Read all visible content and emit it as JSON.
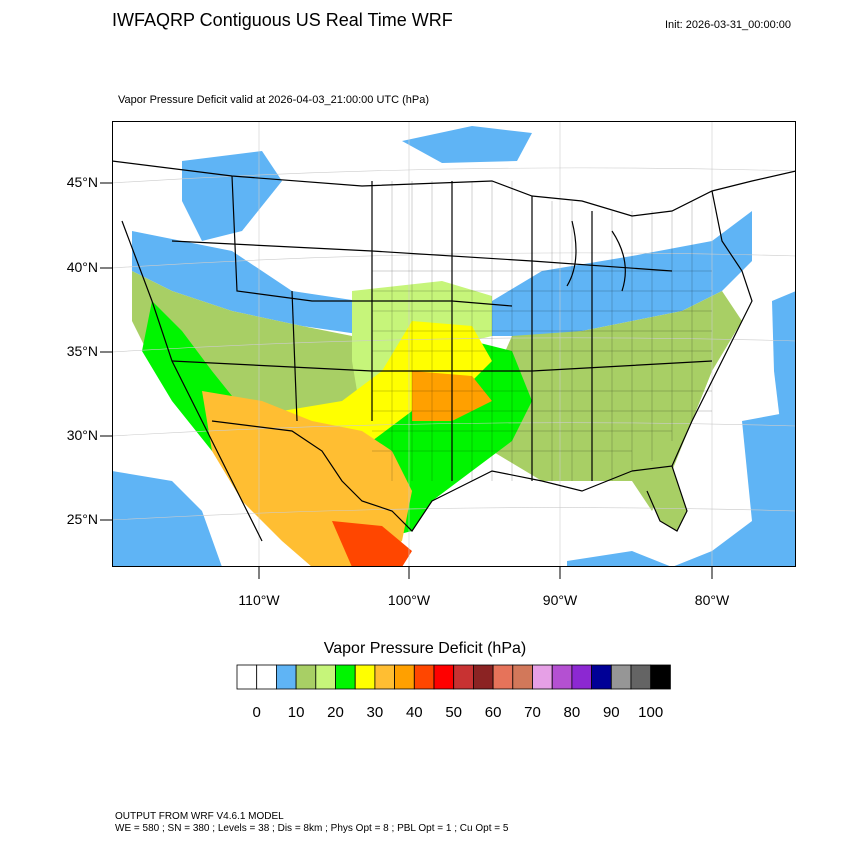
{
  "header": {
    "title": "IWFAQRP Contiguous US Real Time WRF",
    "init": "Init: 2026-03-31_00:00:00",
    "subtitle": "Vapor Pressure Deficit valid at 2026-04-03_21:00:00 UTC   (hPa)"
  },
  "map": {
    "lat_labels": [
      "45°N",
      "40°N",
      "35°N",
      "30°N",
      "25°N"
    ],
    "lon_labels": [
      "110°W",
      "100°W",
      "90°W",
      "80°W"
    ],
    "colors": {
      "ocean_moist": "#5fb4f5",
      "land_light_green": "#a8cf65",
      "land_yellow_green": "#c6f57a",
      "green": "#00f500",
      "yellow": "#ffff00",
      "orange_light": "#ffbe32",
      "orange": "#ffa000",
      "red_orange": "#ff4600",
      "boundary": "#000000"
    }
  },
  "colorbar": {
    "title": "Vapor Pressure Deficit  (hPa)",
    "colors": [
      "#ffffff",
      "#ffffff",
      "#5fb4f5",
      "#a8cf65",
      "#c6f57a",
      "#00f500",
      "#ffff00",
      "#ffbe32",
      "#ffa000",
      "#ff4600",
      "#ff0000",
      "#c83232",
      "#8b2323",
      "#e6735a",
      "#d2785a",
      "#e6a0e6",
      "#b450d2",
      "#8c28d2",
      "#000096",
      "#969696",
      "#646464",
      "#000000"
    ],
    "tick_labels": [
      "0",
      "10",
      "20",
      "30",
      "40",
      "50",
      "60",
      "70",
      "80",
      "90",
      "100"
    ]
  },
  "footer": {
    "line1": "OUTPUT FROM WRF V4.6.1 MODEL",
    "line2": "WE = 580 ; SN = 380 ; Levels = 38 ; Dis = 8km ; Phys Opt = 8 ; PBL Opt = 1 ; Cu Opt = 5"
  }
}
